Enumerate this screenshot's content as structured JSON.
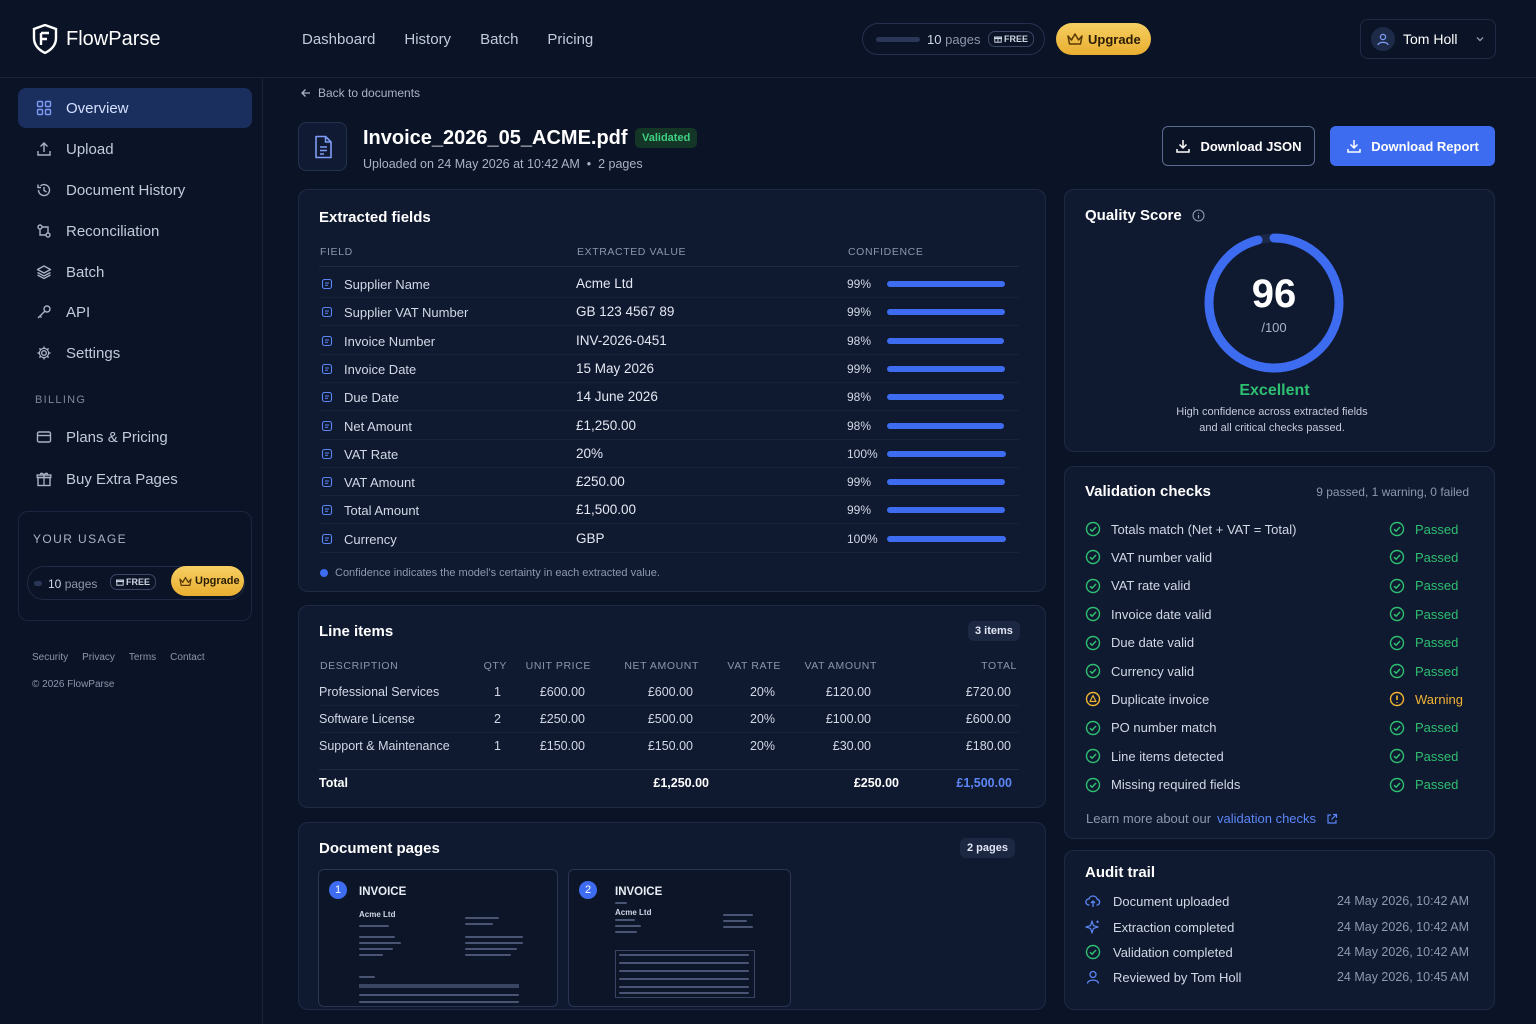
{
  "app": {
    "name": "FlowParse"
  },
  "topnav": [
    "Dashboard",
    "History",
    "Batch",
    "Pricing"
  ],
  "usage_pill": {
    "pages_count": "10",
    "pages_label": "pages",
    "plan": "FREE",
    "upgrade": "Upgrade"
  },
  "user": {
    "name": "Tom Holl"
  },
  "sidebar": {
    "items": [
      {
        "label": "Overview",
        "icon": "grid-icon",
        "active": true
      },
      {
        "label": "Upload",
        "icon": "upload-icon"
      },
      {
        "label": "Document History",
        "icon": "history-icon"
      },
      {
        "label": "Reconciliation",
        "icon": "reconcile-icon"
      },
      {
        "label": "Batch",
        "icon": "layers-icon"
      },
      {
        "label": "API",
        "icon": "key-icon"
      },
      {
        "label": "Settings",
        "icon": "gear-icon"
      }
    ],
    "billing_label": "BILLING",
    "billing_items": [
      {
        "label": "Plans & Pricing",
        "icon": "card-icon"
      },
      {
        "label": "Buy Extra Pages",
        "icon": "gift-icon"
      }
    ],
    "usage": {
      "title": "YOUR USAGE",
      "pages": "10",
      "pages_label": "pages",
      "plan": "FREE",
      "upgrade": "Upgrade"
    },
    "footer_links": [
      "Security",
      "Privacy",
      "Terms",
      "Contact"
    ],
    "copyright": "© 2026 FlowParse"
  },
  "back_link": "Back to documents",
  "document": {
    "filename": "Invoice_2026_05_ACME.pdf",
    "status": "Validated",
    "meta": "Uploaded on 24 May 2026 at 10:42 AM  •  2 pages"
  },
  "actions": {
    "download_json": "Download JSON",
    "download_report": "Download Report"
  },
  "extracted": {
    "title": "Extracted fields",
    "headers": {
      "field": "FIELD",
      "value": "EXTRACTED VALUE",
      "confidence": "CONFIDENCE"
    },
    "rows": [
      {
        "field": "Supplier Name",
        "value": "Acme Ltd",
        "confidence": "99%",
        "level": 0.99
      },
      {
        "field": "Supplier VAT Number",
        "value": "GB 123 4567 89",
        "confidence": "99%",
        "level": 0.99
      },
      {
        "field": "Invoice Number",
        "value": "INV-2026-0451",
        "confidence": "98%",
        "level": 0.98
      },
      {
        "field": "Invoice Date",
        "value": "15 May 2026",
        "confidence": "99%",
        "level": 0.99
      },
      {
        "field": "Due Date",
        "value": "14 June 2026",
        "confidence": "98%",
        "level": 0.98
      },
      {
        "field": "Net Amount",
        "value": "£1,250.00",
        "confidence": "98%",
        "level": 0.98
      },
      {
        "field": "VAT Rate",
        "value": "20%",
        "confidence": "100%",
        "level": 1.0
      },
      {
        "field": "VAT Amount",
        "value": "£250.00",
        "confidence": "99%",
        "level": 0.99
      },
      {
        "field": "Total Amount",
        "value": "£1,500.00",
        "confidence": "99%",
        "level": 0.99
      },
      {
        "field": "Currency",
        "value": "GBP",
        "confidence": "100%",
        "level": 1.0
      }
    ],
    "note": "Confidence indicates the model's certainty in each extracted value."
  },
  "line_items": {
    "title": "Line items",
    "badge": "3 items",
    "headers": [
      "DESCRIPTION",
      "QTY",
      "UNIT PRICE",
      "NET AMOUNT",
      "VAT RATE",
      "VAT AMOUNT",
      "TOTAL"
    ],
    "rows": [
      [
        "Professional Services",
        "1",
        "£600.00",
        "£600.00",
        "20%",
        "£120.00",
        "£720.00"
      ],
      [
        "Software License",
        "2",
        "£250.00",
        "£500.00",
        "20%",
        "£100.00",
        "£600.00"
      ],
      [
        "Support & Maintenance",
        "1",
        "£150.00",
        "£150.00",
        "20%",
        "£30.00",
        "£180.00"
      ]
    ],
    "total": {
      "label": "Total",
      "net": "£1,250.00",
      "vat": "£250.00",
      "total": "£1,500.00"
    }
  },
  "document_pages": {
    "title": "Document pages",
    "badge": "2 pages",
    "pages": [
      {
        "num": "1",
        "title": "INVOICE",
        "company": "Acme Ltd"
      },
      {
        "num": "2",
        "title": "INVOICE",
        "company": "Acme Ltd"
      }
    ]
  },
  "quality": {
    "title": "Quality Score",
    "score": "96",
    "out_of": "/100",
    "level": 0.96,
    "grade": "Excellent",
    "desc1": "High confidence across extracted fields",
    "desc2": "and all critical checks passed."
  },
  "validation": {
    "title": "Validation checks",
    "summary": "9 passed, 1 warning, 0 failed",
    "checks": [
      {
        "label": "Totals match (Net + VAT = Total)",
        "status": "Passed",
        "kind": "pass"
      },
      {
        "label": "VAT number valid",
        "status": "Passed",
        "kind": "pass"
      },
      {
        "label": "VAT rate valid",
        "status": "Passed",
        "kind": "pass"
      },
      {
        "label": "Invoice date valid",
        "status": "Passed",
        "kind": "pass"
      },
      {
        "label": "Due date valid",
        "status": "Passed",
        "kind": "pass"
      },
      {
        "label": "Currency valid",
        "status": "Passed",
        "kind": "pass"
      },
      {
        "label": "Duplicate invoice",
        "status": "Warning",
        "kind": "warn"
      },
      {
        "label": "PO number match",
        "status": "Passed",
        "kind": "pass"
      },
      {
        "label": "Line items detected",
        "status": "Passed",
        "kind": "pass"
      },
      {
        "label": "Missing required fields",
        "status": "Passed",
        "kind": "pass"
      }
    ],
    "learn_prefix": "Learn more about our",
    "learn_link": "validation checks"
  },
  "audit": {
    "title": "Audit trail",
    "entries": [
      {
        "label": "Document uploaded",
        "time": "24 May 2026, 10:42 AM",
        "icon": "cloud-upload-icon"
      },
      {
        "label": "Extraction completed",
        "time": "24 May 2026, 10:42 AM",
        "icon": "sparkle-icon"
      },
      {
        "label": "Validation completed",
        "time": "24 May 2026, 10:42 AM",
        "icon": "check-circle-icon"
      },
      {
        "label": "Reviewed by Tom Holl",
        "time": "24 May 2026, 10:45 AM",
        "icon": "user-icon"
      }
    ]
  },
  "colors": {
    "accent": "#3d6cf0",
    "success": "#2fbf71",
    "warning": "#f2b233",
    "gold": "#f0c04a",
    "background": "#0b1326"
  }
}
